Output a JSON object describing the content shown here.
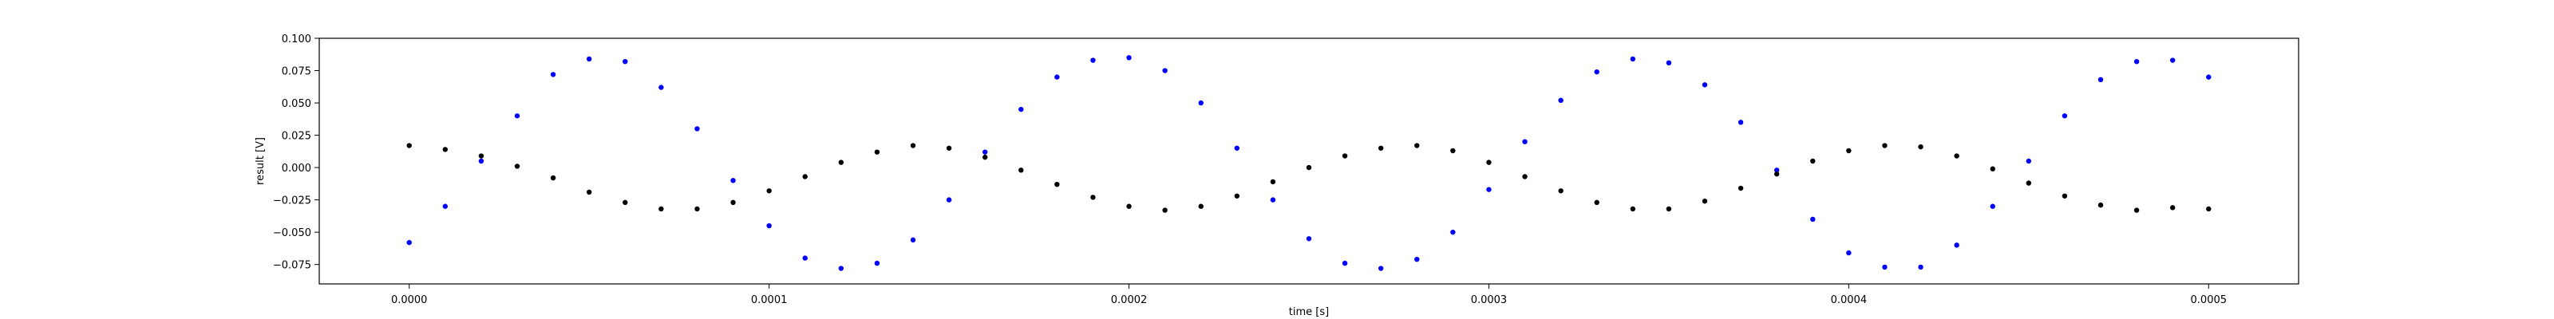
{
  "chart_data": {
    "type": "scatter",
    "title": "",
    "xlabel": "time [s]",
    "ylabel": "result [V]",
    "xlim": [
      -2.5e-05,
      0.000525
    ],
    "ylim": [
      -0.09,
      0.1
    ],
    "x_ticks": [
      0.0,
      0.0001,
      0.0002,
      0.0003,
      0.0004,
      0.0005
    ],
    "x_tick_labels": [
      "0.0000",
      "0.0001",
      "0.0002",
      "0.0003",
      "0.0004",
      "0.0005"
    ],
    "y_ticks": [
      -0.075,
      -0.05,
      -0.025,
      0.0,
      0.025,
      0.05,
      0.075,
      0.1
    ],
    "y_tick_labels": [
      "−0.075",
      "−0.050",
      "−0.025",
      "0.000",
      "0.025",
      "0.050",
      "0.075",
      "0.100"
    ],
    "grid": false,
    "legend": "none",
    "series": [
      {
        "color": "#0000ff",
        "marker": "dot",
        "points": [
          [
            0.0,
            -0.058
          ],
          [
            1e-05,
            -0.03
          ],
          [
            2e-05,
            0.005
          ],
          [
            3e-05,
            0.04
          ],
          [
            4e-05,
            0.072
          ],
          [
            5e-05,
            0.084
          ],
          [
            6e-05,
            0.082
          ],
          [
            7e-05,
            0.062
          ],
          [
            8e-05,
            0.03
          ],
          [
            9e-05,
            -0.01
          ],
          [
            0.0001,
            -0.045
          ],
          [
            0.00011,
            -0.07
          ],
          [
            0.00012,
            -0.078
          ],
          [
            0.00013,
            -0.074
          ],
          [
            0.00014,
            -0.056
          ],
          [
            0.00015,
            -0.025
          ],
          [
            0.00016,
            0.012
          ],
          [
            0.00017,
            0.045
          ],
          [
            0.00018,
            0.07
          ],
          [
            0.00019,
            0.083
          ],
          [
            0.0002,
            0.085
          ],
          [
            0.00021,
            0.075
          ],
          [
            0.00022,
            0.05
          ],
          [
            0.00023,
            0.015
          ],
          [
            0.00024,
            -0.025
          ],
          [
            0.00025,
            -0.055
          ],
          [
            0.00026,
            -0.074
          ],
          [
            0.00027,
            -0.078
          ],
          [
            0.00028,
            -0.071
          ],
          [
            0.00029,
            -0.05
          ],
          [
            0.0003,
            -0.017
          ],
          [
            0.00031,
            0.02
          ],
          [
            0.00032,
            0.052
          ],
          [
            0.00033,
            0.074
          ],
          [
            0.00034,
            0.084
          ],
          [
            0.00035,
            0.081
          ],
          [
            0.00036,
            0.064
          ],
          [
            0.00037,
            0.035
          ],
          [
            0.00038,
            -0.002
          ],
          [
            0.00039,
            -0.04
          ],
          [
            0.0004,
            -0.066
          ],
          [
            0.00041,
            -0.077
          ],
          [
            0.00042,
            -0.077
          ],
          [
            0.00043,
            -0.06
          ],
          [
            0.00044,
            -0.03
          ],
          [
            0.00045,
            0.005
          ],
          [
            0.00046,
            0.04
          ],
          [
            0.00047,
            0.068
          ],
          [
            0.00048,
            0.082
          ],
          [
            0.00049,
            0.083
          ],
          [
            0.0005,
            0.07
          ]
        ]
      },
      {
        "color": "#000000",
        "marker": "dot",
        "points": [
          [
            0.0,
            0.017
          ],
          [
            1e-05,
            0.014
          ],
          [
            2e-05,
            0.009
          ],
          [
            3e-05,
            0.001
          ],
          [
            4e-05,
            -0.008
          ],
          [
            5e-05,
            -0.019
          ],
          [
            6e-05,
            -0.027
          ],
          [
            7e-05,
            -0.032
          ],
          [
            8e-05,
            -0.032
          ],
          [
            9e-05,
            -0.027
          ],
          [
            0.0001,
            -0.018
          ],
          [
            0.00011,
            -0.007
          ],
          [
            0.00012,
            0.004
          ],
          [
            0.00013,
            0.012
          ],
          [
            0.00014,
            0.017
          ],
          [
            0.00015,
            0.015
          ],
          [
            0.00016,
            0.008
          ],
          [
            0.00017,
            -0.002
          ],
          [
            0.00018,
            -0.013
          ],
          [
            0.00019,
            -0.023
          ],
          [
            0.0002,
            -0.03
          ],
          [
            0.00021,
            -0.033
          ],
          [
            0.00022,
            -0.03
          ],
          [
            0.00023,
            -0.022
          ],
          [
            0.00024,
            -0.011
          ],
          [
            0.00025,
            0.0
          ],
          [
            0.00026,
            0.009
          ],
          [
            0.00027,
            0.015
          ],
          [
            0.00028,
            0.017
          ],
          [
            0.00029,
            0.013
          ],
          [
            0.0003,
            0.004
          ],
          [
            0.00031,
            -0.007
          ],
          [
            0.00032,
            -0.018
          ],
          [
            0.00033,
            -0.027
          ],
          [
            0.00034,
            -0.032
          ],
          [
            0.00035,
            -0.032
          ],
          [
            0.00036,
            -0.026
          ],
          [
            0.00037,
            -0.016
          ],
          [
            0.00038,
            -0.005
          ],
          [
            0.00039,
            0.005
          ],
          [
            0.0004,
            0.013
          ],
          [
            0.00041,
            0.017
          ],
          [
            0.00042,
            0.016
          ],
          [
            0.00043,
            0.009
          ],
          [
            0.00044,
            -0.001
          ],
          [
            0.00045,
            -0.012
          ],
          [
            0.00046,
            -0.022
          ],
          [
            0.00047,
            -0.029
          ],
          [
            0.00048,
            -0.033
          ],
          [
            0.00049,
            -0.031
          ],
          [
            0.0005,
            -0.032
          ]
        ]
      }
    ]
  }
}
